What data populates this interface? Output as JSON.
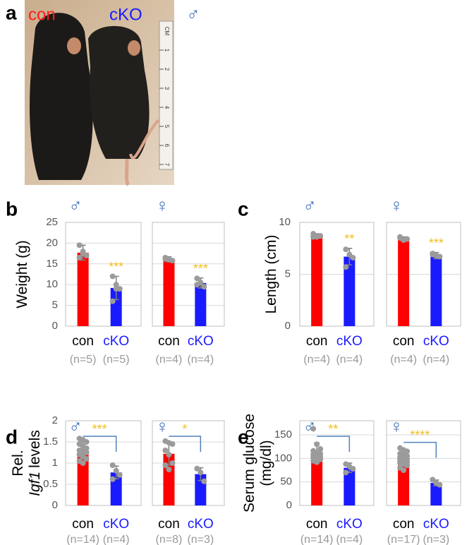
{
  "photo": {
    "label": "a",
    "groups": [
      "con",
      "cKO"
    ],
    "group_colors": [
      "#ff1a1a",
      "#1a1aff"
    ],
    "sex": "♂",
    "ruler": [
      "CM",
      "1",
      "2",
      "3",
      "4",
      "5",
      "6",
      "7"
    ]
  },
  "chart_data": [
    {
      "type": "bar",
      "label": "b",
      "ylabel_lines": [
        [
          {
            "text": "Weight (g)"
          }
        ]
      ],
      "ylim": [
        0,
        25
      ],
      "yticks": [
        0,
        5,
        10,
        15,
        20,
        25
      ],
      "grid": true,
      "colors": [
        "#ff0000",
        "#1a1aff"
      ],
      "category_label_colors": [
        "#000000",
        "#1a1aff"
      ],
      "subplots": [
        {
          "sex": "♂",
          "categories": [
            "con",
            "cKO"
          ],
          "n_labels": [
            "(n=5)",
            "(n=5)"
          ],
          "values": [
            17.7,
            9.2
          ],
          "errors": [
            1.8,
            2.8
          ],
          "points": [
            [
              19.5,
              18,
              17,
              16.5,
              17.5
            ],
            [
              12,
              10,
              9,
              6,
              9
            ]
          ],
          "significance": "***",
          "bracket": false
        },
        {
          "sex": "♀",
          "categories": [
            "con",
            "cKO"
          ],
          "n_labels": [
            "(n=4)",
            "(n=4)"
          ],
          "values": [
            16.1,
            10.4
          ],
          "errors": [
            0.6,
            1.2
          ],
          "points": [
            [
              16.5,
              16,
              15.8,
              16.2
            ],
            [
              11.5,
              10.5,
              9.5,
              10
            ]
          ],
          "significance": "***",
          "bracket": false
        }
      ]
    },
    {
      "type": "bar",
      "label": "c",
      "ylabel_lines": [
        [
          {
            "text": "Length (cm)"
          }
        ]
      ],
      "ylim": [
        0,
        10
      ],
      "yticks": [
        0,
        5,
        10
      ],
      "grid": true,
      "colors": [
        "#ff0000",
        "#1a1aff"
      ],
      "category_label_colors": [
        "#000000",
        "#1a1aff"
      ],
      "subplots": [
        {
          "sex": "♂",
          "categories": [
            "con",
            "cKO"
          ],
          "n_labels": [
            "(n=4)",
            "(n=4)"
          ],
          "values": [
            8.7,
            6.7
          ],
          "errors": [
            0.2,
            0.8
          ],
          "points": [
            [
              8.9,
              8.6,
              8.7,
              8.6
            ],
            [
              7.4,
              6.9,
              6.6,
              5.7
            ]
          ],
          "significance": "**",
          "bracket": false
        },
        {
          "sex": "♀",
          "categories": [
            "con",
            "cKO"
          ],
          "n_labels": [
            "(n=4)",
            "(n=4)"
          ],
          "values": [
            8.4,
            6.8
          ],
          "errors": [
            0.2,
            0.3
          ],
          "points": [
            [
              8.5,
              8.3,
              8.4,
              8.6
            ],
            [
              7.0,
              6.8,
              6.7,
              6.9
            ]
          ],
          "significance": "***",
          "bracket": false
        }
      ]
    },
    {
      "type": "bar",
      "label": "d",
      "ylabel_lines": [
        [
          {
            "text": "Rel."
          }
        ],
        [
          {
            "text": "Igf1",
            "italic": true
          },
          {
            "text": "levels"
          }
        ]
      ],
      "ylim": [
        0,
        2
      ],
      "yticks": [
        0,
        0.5,
        1,
        1.5,
        2
      ],
      "grid": true,
      "colors": [
        "#ff0000",
        "#1a1aff"
      ],
      "category_label_colors": [
        "#000000",
        "#1a1aff"
      ],
      "subplots": [
        {
          "sex": "♂",
          "categories": [
            "con",
            "cKO"
          ],
          "n_labels": [
            "(n=14)",
            "(n=4)"
          ],
          "values": [
            1.3,
            0.78
          ],
          "errors": [
            0.2,
            0.15
          ],
          "points": [
            [
              1.58,
              1.55,
              1.5,
              1.45,
              1.4,
              1.35,
              1.3,
              1.28,
              1.25,
              1.2,
              1.15,
              1.1,
              1.05,
              1.0
            ],
            [
              0.95,
              0.82,
              0.72,
              0.62
            ]
          ],
          "significance": "***",
          "bracket": true
        },
        {
          "sex": "♀",
          "categories": [
            "con",
            "cKO"
          ],
          "n_labels": [
            "(n=8)",
            "(n=3)"
          ],
          "values": [
            1.22,
            0.74
          ],
          "errors": [
            0.27,
            0.15
          ],
          "points": [
            [
              1.52,
              1.48,
              1.45,
              1.3,
              1.2,
              1.0,
              0.95,
              0.85
            ],
            [
              0.87,
              0.78,
              0.57
            ]
          ],
          "significance": "*",
          "bracket": true
        }
      ]
    },
    {
      "type": "bar",
      "label": "e",
      "ylabel_lines": [
        [
          {
            "text": "Serum glucose"
          }
        ],
        [
          {
            "text": "(mg/dl)"
          }
        ]
      ],
      "ylim": [
        0,
        180
      ],
      "yticks": [
        0,
        50,
        100,
        150
      ],
      "grid": true,
      "colors": [
        "#ff0000",
        "#1a1aff"
      ],
      "category_label_colors": [
        "#000000",
        "#1a1aff"
      ],
      "subplots": [
        {
          "sex": "♂",
          "categories": [
            "con",
            "cKO"
          ],
          "n_labels": [
            "(n=14)",
            "(n=4)"
          ],
          "values": [
            111,
            80
          ],
          "errors": [
            22,
            10
          ],
          "points": [
            [
              163,
              130,
              120,
              116,
              112,
              110,
              108,
              106,
              104,
              102,
              100,
              98,
              95,
              92
            ],
            [
              88,
              83,
              78,
              70
            ]
          ],
          "significance": "**",
          "bracket": true
        },
        {
          "sex": "♀",
          "categories": [
            "con",
            "cKO"
          ],
          "n_labels": [
            "(n=17)",
            "(n=3)"
          ],
          "values": [
            97,
            48
          ],
          "errors": [
            13,
            6
          ],
          "points": [
            [
              122,
              118,
              115,
              110,
              108,
              105,
              102,
              100,
              98,
              96,
              94,
              92,
              90,
              88,
              85,
              80,
              75
            ],
            [
              55,
              48,
              44
            ]
          ],
          "significance": "****",
          "bracket": true
        }
      ]
    }
  ]
}
